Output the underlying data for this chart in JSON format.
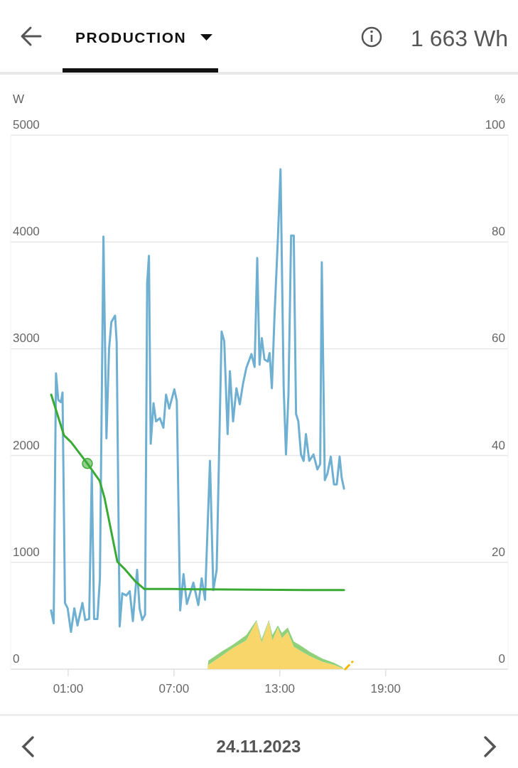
{
  "chart_data": {
    "type": "line",
    "title": "PRODUCTION",
    "ylabel": "W",
    "y2label": "%",
    "annotations": [
      "1 663 Wh",
      "24.11.2023"
    ],
    "xlim": [
      -2.26,
      25.94
    ],
    "xticks": [
      {
        "value": 1,
        "label": "01:00"
      },
      {
        "value": 7,
        "label": "07:00"
      },
      {
        "value": 13,
        "label": "13:00"
      },
      {
        "value": 19,
        "label": "19:00"
      }
    ],
    "ylim": [
      0,
      5000
    ],
    "yticks": [
      0,
      1000,
      2000,
      3000,
      4000,
      5000
    ],
    "y2lim": [
      0,
      100
    ],
    "y2ticks": [
      0,
      20,
      40,
      60,
      80,
      100
    ],
    "grid": "y",
    "legend": false,
    "stacked": true,
    "series": [
      {
        "type": "area",
        "color": "#f9d66a",
        "x": [
          8.9,
          8.95,
          9.75,
          10.35,
          11.1,
          11.68,
          11.97,
          12.38,
          12.58,
          12.89,
          13.12,
          13.45,
          13.79,
          14.19,
          14.73,
          15.4,
          16.07,
          16.54,
          16.63
        ],
        "values": [
          0,
          40,
          130,
          200,
          270,
          450,
          250,
          450,
          270,
          390,
          290,
          350,
          210,
          170,
          120,
          70,
          40,
          10,
          0
        ]
      },
      {
        "type": "area",
        "color": "#8fd07a",
        "x": [
          8.9,
          8.95,
          9.75,
          10.35,
          11.1,
          11.68,
          11.97,
          12.38,
          12.58,
          12.89,
          13.12,
          13.45,
          13.79,
          14.19,
          14.73,
          15.4,
          16.07,
          16.54,
          16.63
        ],
        "values": [
          0,
          40,
          40,
          30,
          50,
          10,
          30,
          10,
          50,
          20,
          50,
          40,
          50,
          50,
          40,
          30,
          20,
          10,
          0
        ]
      },
      {
        "type": "line",
        "color": "#f5b800",
        "line_style": "dashed",
        "x": [
          16.71,
          17.12
        ],
        "values": [
          0,
          70
        ]
      },
      {
        "type": "line",
        "color": "#6fb0d2",
        "x": [
          0.03,
          0.18,
          0.31,
          0.44,
          0.59,
          0.68,
          0.82,
          0.97,
          1.16,
          1.35,
          1.53,
          1.81,
          1.97,
          2.19,
          2.34,
          2.47,
          2.66,
          2.8,
          3.0,
          3.17,
          3.32,
          3.45,
          3.66,
          3.75,
          3.92,
          4.07,
          4.3,
          4.49,
          4.67,
          4.91,
          5.05,
          5.2,
          5.36,
          5.48,
          5.58,
          5.68,
          5.84,
          5.98,
          6.2,
          6.4,
          6.55,
          6.73,
          7.02,
          7.16,
          7.35,
          7.54,
          7.73,
          8.1,
          8.38,
          8.57,
          8.76,
          9.04,
          9.23,
          9.42,
          9.7,
          9.85,
          10.04,
          10.17,
          10.35,
          10.54,
          10.73,
          10.91,
          11.1,
          11.39,
          11.57,
          11.72,
          11.85,
          11.98,
          12.13,
          12.32,
          12.42,
          12.55,
          12.7,
          12.89,
          13.04,
          13.22,
          13.35,
          13.49,
          13.64,
          13.79,
          13.92,
          14.05,
          14.2,
          14.35,
          14.48,
          14.67,
          14.91,
          15.13,
          15.29,
          15.38,
          15.55,
          15.7,
          15.89,
          16.07,
          16.23,
          16.39,
          16.51,
          16.64
        ],
        "values": [
          550,
          430,
          2770,
          2520,
          2500,
          2590,
          620,
          570,
          350,
          570,
          410,
          620,
          460,
          470,
          1850,
          470,
          470,
          850,
          4050,
          2160,
          3000,
          3250,
          3310,
          3060,
          400,
          710,
          690,
          730,
          450,
          930,
          570,
          460,
          510,
          3620,
          3870,
          2110,
          2490,
          2320,
          2350,
          2260,
          2570,
          2440,
          2620,
          2510,
          550,
          890,
          610,
          810,
          600,
          850,
          650,
          1950,
          740,
          930,
          3160,
          3070,
          2200,
          2790,
          2320,
          2630,
          2480,
          2670,
          2820,
          2950,
          2830,
          3850,
          2850,
          3100,
          2900,
          2880,
          2960,
          2630,
          3310,
          4030,
          4680,
          2630,
          2010,
          2570,
          4060,
          4060,
          2390,
          2320,
          2010,
          1950,
          2200,
          1950,
          2010,
          1870,
          1920,
          3810,
          1770,
          1830,
          1990,
          1730,
          1730,
          1990,
          1790,
          1690
        ]
      },
      {
        "type": "line",
        "color": "#3aaa35",
        "axis": "y2",
        "x": [
          0.04,
          0.76,
          1.17,
          2.09,
          2.78,
          3.06,
          3.79,
          4.19,
          4.79,
          5.32,
          7.03,
          14.48,
          16.64
        ],
        "values": [
          51.4,
          43.8,
          42.5,
          38.5,
          35.3,
          32.1,
          20.1,
          18.8,
          16.5,
          15.0,
          15.0,
          14.8,
          14.8
        ]
      },
      {
        "type": "scatter",
        "color": "#3aaa35",
        "axis": "y2",
        "marker": "circle",
        "x": [
          2.09
        ],
        "values": [
          38.5
        ]
      }
    ]
  }
}
